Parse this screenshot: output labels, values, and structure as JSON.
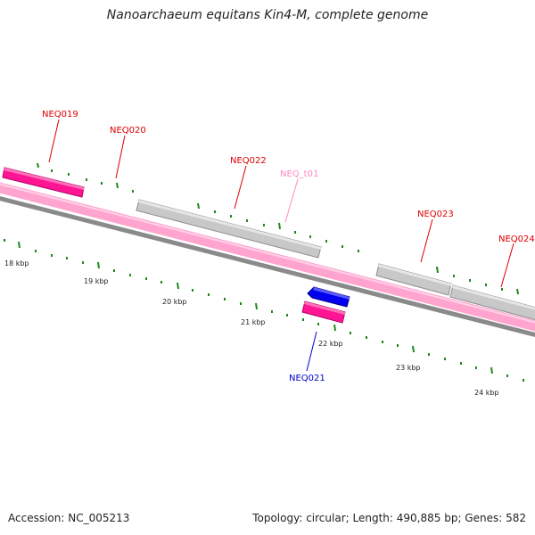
{
  "title": "Nanoarchaeum equitans Kin4-M, complete genome",
  "footer": {
    "accession_label": "Accession:",
    "accession": "NC_005213",
    "topology_label": "Topology:",
    "topology": "circular",
    "length_label": "Length:",
    "length": "490,885 bp",
    "genes_label": "Genes:",
    "genes": "582"
  },
  "colors": {
    "backbone_pink": "#ff99c8",
    "backbone_gray": "#8a8a8a",
    "gene_magenta": "#ff1493",
    "gene_gray": "#c8c8c8",
    "gene_blue": "#0000ee",
    "label_red": "#dd0000",
    "label_pink": "#ff88c0",
    "label_blue": "#0000cc",
    "tick_green": "#1a8a1a"
  },
  "scale": {
    "labels": [
      "18 kbp",
      "19 kbp",
      "20 kbp",
      "21 kbp",
      "22 kbp",
      "23 kbp",
      "24 kbp"
    ]
  },
  "genes": [
    {
      "name": "NEQ019",
      "strand": "forward",
      "type": "protein-coding",
      "color": "magenta"
    },
    {
      "name": "NEQ020",
      "strand": "forward",
      "type": "protein-coding",
      "color": "gray"
    },
    {
      "name": "NEQ022",
      "strand": "forward",
      "type": "protein-coding",
      "color": "gray"
    },
    {
      "name": "NEQ_t01",
      "strand": "forward",
      "type": "tRNA",
      "color": "pink"
    },
    {
      "name": "NEQ023",
      "strand": "forward",
      "type": "protein-coding",
      "color": "gray"
    },
    {
      "name": "NEQ024",
      "strand": "forward",
      "type": "protein-coding",
      "color": "gray"
    },
    {
      "name": "NEQ021",
      "strand": "reverse",
      "type": "protein-coding",
      "color": "blue"
    }
  ]
}
